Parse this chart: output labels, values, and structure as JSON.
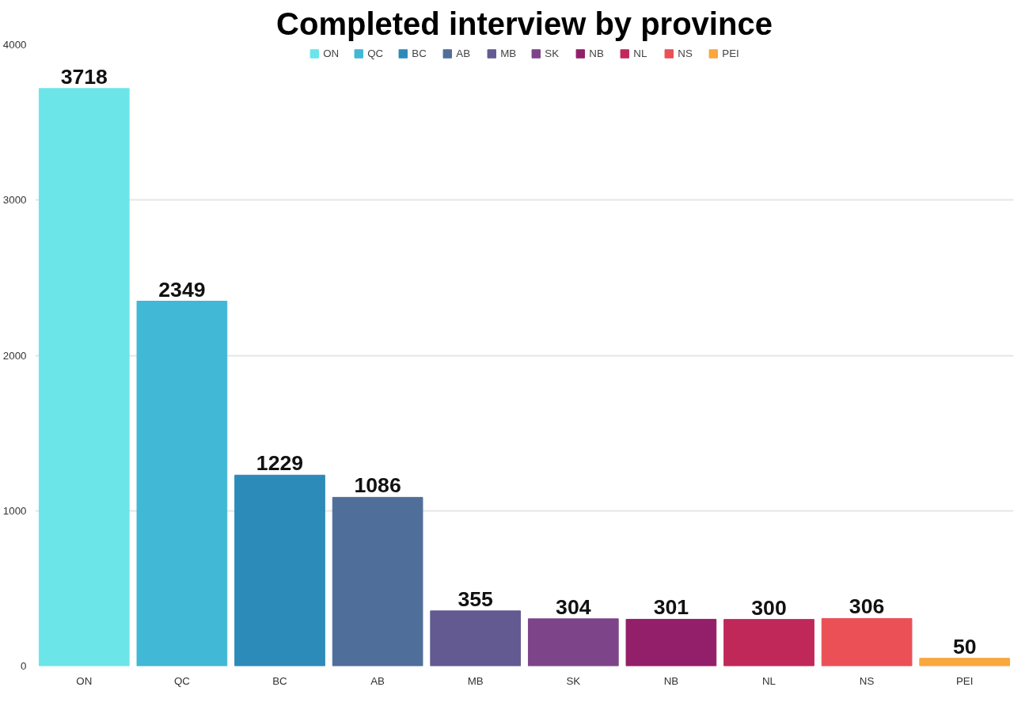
{
  "chart_data": {
    "type": "bar",
    "title": "Completed interview by province",
    "categories": [
      "ON",
      "QC",
      "BC",
      "AB",
      "MB",
      "SK",
      "NB",
      "NL",
      "NS",
      "PEI"
    ],
    "series": [
      {
        "name": "ON",
        "color": "#6ce5e8",
        "values": [
          3718,
          null,
          null,
          null,
          null,
          null,
          null,
          null,
          null,
          null
        ]
      },
      {
        "name": "QC",
        "color": "#41b8d5",
        "values": [
          null,
          2349,
          null,
          null,
          null,
          null,
          null,
          null,
          null,
          null
        ]
      },
      {
        "name": "BC",
        "color": "#2d8bba",
        "values": [
          null,
          null,
          1229,
          null,
          null,
          null,
          null,
          null,
          null,
          null
        ]
      },
      {
        "name": "AB",
        "color": "#506e9a",
        "values": [
          null,
          null,
          null,
          1086,
          null,
          null,
          null,
          null,
          null,
          null
        ]
      },
      {
        "name": "MB",
        "color": "#635a92",
        "values": [
          null,
          null,
          null,
          null,
          355,
          null,
          null,
          null,
          null,
          null
        ]
      },
      {
        "name": "SK",
        "color": "#7e4489",
        "values": [
          null,
          null,
          null,
          null,
          null,
          304,
          null,
          null,
          null,
          null
        ]
      },
      {
        "name": "NB",
        "color": "#931f6a",
        "values": [
          null,
          null,
          null,
          null,
          null,
          null,
          301,
          null,
          null,
          null
        ]
      },
      {
        "name": "NL",
        "color": "#c1285a",
        "values": [
          null,
          null,
          null,
          null,
          null,
          null,
          null,
          300,
          null,
          null
        ]
      },
      {
        "name": "NS",
        "color": "#ea5056",
        "values": [
          null,
          null,
          null,
          null,
          null,
          null,
          null,
          null,
          306,
          null
        ]
      },
      {
        "name": "PEI",
        "color": "#f9a73e",
        "values": [
          null,
          null,
          null,
          null,
          null,
          null,
          null,
          null,
          null,
          50
        ]
      }
    ],
    "ylim": [
      0,
      4000
    ],
    "yticks": [
      0,
      1000,
      2000,
      3000,
      4000
    ],
    "grid": "y",
    "legend": "top",
    "data_labels": true
  }
}
